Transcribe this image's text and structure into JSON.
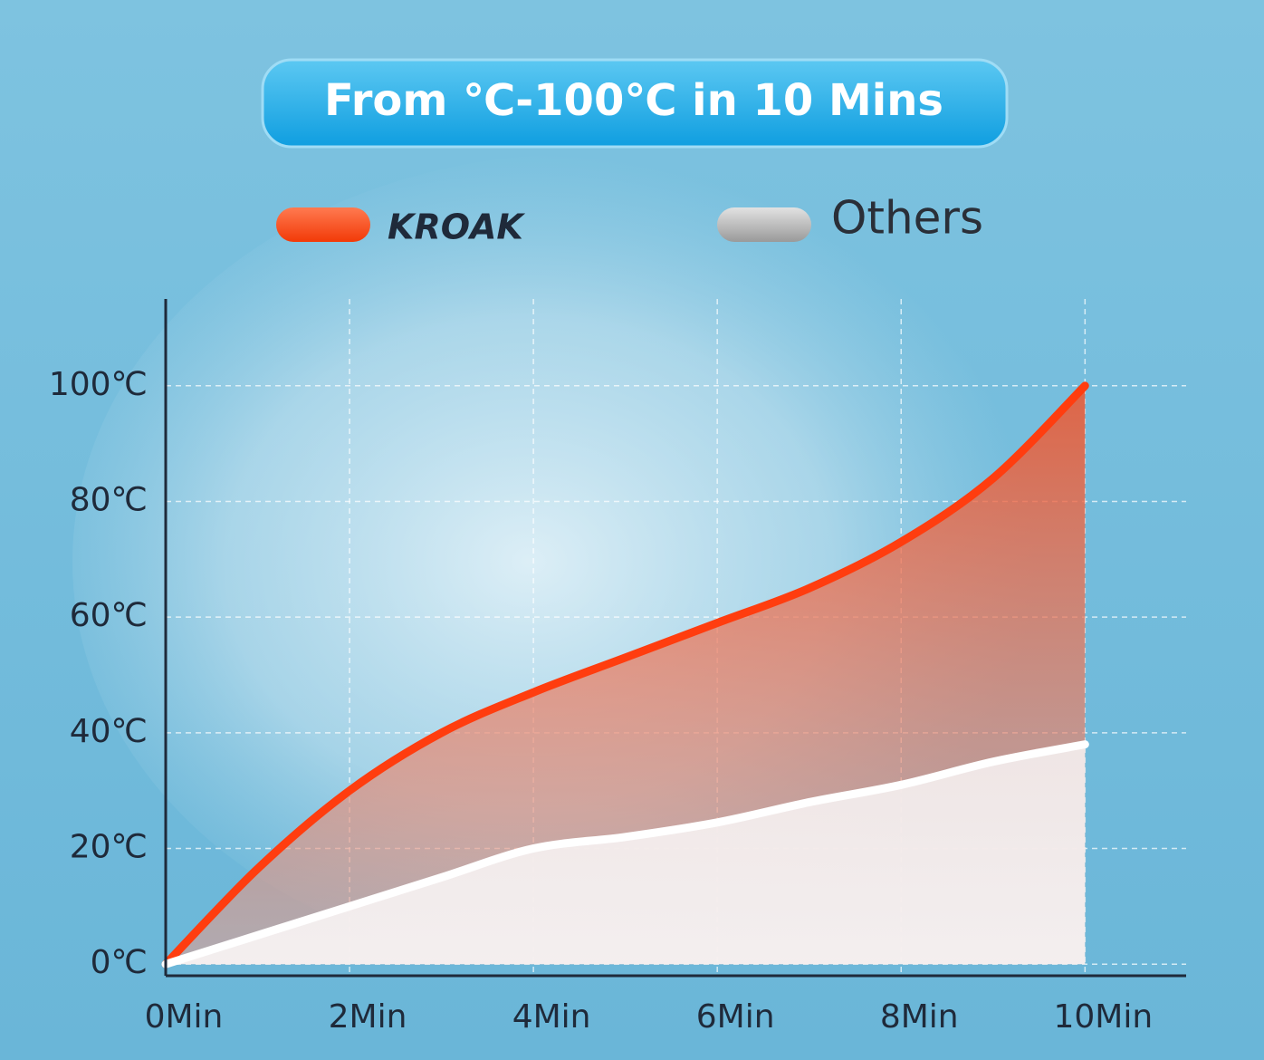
{
  "chart_data": {
    "type": "area-line",
    "title": "From ℃-100℃ in 10 Mins",
    "x": [
      0,
      1,
      2,
      3,
      4,
      5,
      6,
      7,
      8,
      9,
      10
    ],
    "series": [
      {
        "name": "KROAK",
        "color": "#ff3d0f",
        "values": [
          0,
          16.5,
          30,
          40,
          47,
          53,
          59,
          65,
          73,
          84,
          100
        ]
      },
      {
        "name": "Others",
        "color": "#ffffff",
        "values": [
          0,
          5,
          10,
          15,
          20,
          22,
          24.5,
          28,
          31,
          35,
          38
        ]
      }
    ],
    "xlim": [
      0,
      11.1
    ],
    "ylim": [
      -2,
      115
    ],
    "xticks": [
      {
        "value": 0,
        "label": "0Min"
      },
      {
        "value": 2,
        "label": "2Min"
      },
      {
        "value": 4,
        "label": "4Min"
      },
      {
        "value": 6,
        "label": "6Min"
      },
      {
        "value": 8,
        "label": "8Min"
      },
      {
        "value": 10,
        "label": "10Min"
      }
    ],
    "yticks": [
      {
        "value": 0,
        "label": "0℃"
      },
      {
        "value": 20,
        "label": "20℃"
      },
      {
        "value": 40,
        "label": "40℃"
      },
      {
        "value": 60,
        "label": "60℃"
      },
      {
        "value": 80,
        "label": "80℃"
      },
      {
        "value": 100,
        "label": "100℃"
      }
    ],
    "grid": true
  }
}
